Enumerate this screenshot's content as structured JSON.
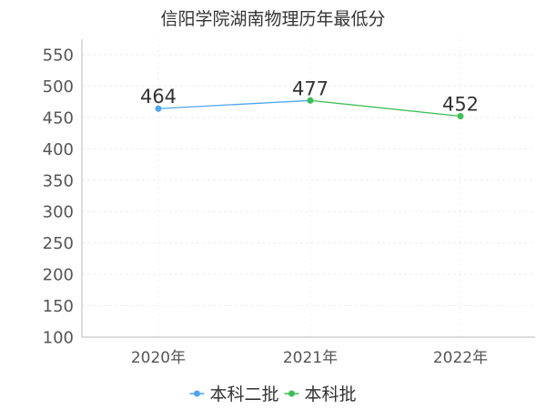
{
  "chart_data": {
    "type": "line",
    "title": "信阳学院湖南物理历年最低分",
    "categories": [
      "2020年",
      "2021年",
      "2022年"
    ],
    "ylim": [
      100,
      550
    ],
    "yticks": [
      100,
      150,
      200,
      250,
      300,
      350,
      400,
      450,
      500,
      550
    ],
    "grid": true,
    "legend_position": "bottom",
    "series": [
      {
        "name": "本科二批",
        "color": "#4da6f0",
        "points": [
          {
            "x": "2020年",
            "y": 464
          },
          {
            "x": "2021年",
            "y": 477
          }
        ],
        "labels": [
          {
            "x": "2020年",
            "y": 464,
            "text": "464"
          }
        ]
      },
      {
        "name": "本科批",
        "color": "#3dbf55",
        "points": [
          {
            "x": "2021年",
            "y": 477
          },
          {
            "x": "2022年",
            "y": 452
          }
        ],
        "labels": [
          {
            "x": "2021年",
            "y": 477,
            "text": "477"
          },
          {
            "x": "2022年",
            "y": 452,
            "text": "452"
          }
        ]
      }
    ]
  }
}
